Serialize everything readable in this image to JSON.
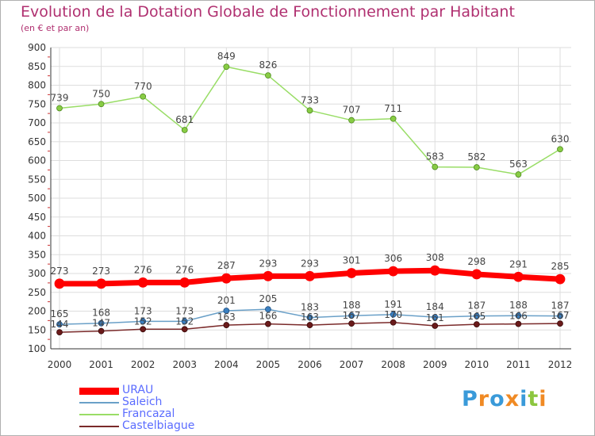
{
  "chart_data": {
    "type": "line",
    "title": "Evolution de la Dotation Globale de Fonctionnement par Habitant",
    "subtitle": "(en € et par an)",
    "x": [
      "2000",
      "2001",
      "2002",
      "2003",
      "2004",
      "2005",
      "2006",
      "2007",
      "2008",
      "2009",
      "2010",
      "2011",
      "2012"
    ],
    "ylim": [
      100,
      900
    ],
    "yticks": [
      100,
      150,
      200,
      250,
      300,
      350,
      400,
      450,
      500,
      550,
      600,
      650,
      700,
      750,
      800,
      850,
      900
    ],
    "grid": true,
    "series": [
      {
        "name": "URAU",
        "color": "#ff0000",
        "values": [
          273,
          273,
          276,
          276,
          287,
          293,
          293,
          301,
          306,
          308,
          298,
          291,
          285
        ]
      },
      {
        "name": "Saleich",
        "color": "#6aa0c8",
        "values": [
          165,
          168,
          173,
          173,
          201,
          205,
          183,
          188,
          191,
          184,
          187,
          188,
          187
        ]
      },
      {
        "name": "Francazal",
        "color": "#99dd66",
        "values": [
          739,
          750,
          770,
          681,
          849,
          826,
          733,
          707,
          711,
          583,
          582,
          563,
          630
        ]
      },
      {
        "name": "Castelbiague",
        "color": "#7a2a2a",
        "values": [
          144,
          147,
          152,
          152,
          163,
          166,
          163,
          167,
          170,
          161,
          165,
          166,
          167
        ]
      }
    ]
  },
  "logo": {
    "text": "Proxiti",
    "letters": [
      "P",
      "r",
      "o",
      "x",
      "i",
      "t",
      "i"
    ],
    "colors": [
      "#3a9ad9",
      "#f08a24",
      "#3a9ad9",
      "#f08a24",
      "#3a9ad9",
      "#8cc63f",
      "#f08a24"
    ]
  }
}
